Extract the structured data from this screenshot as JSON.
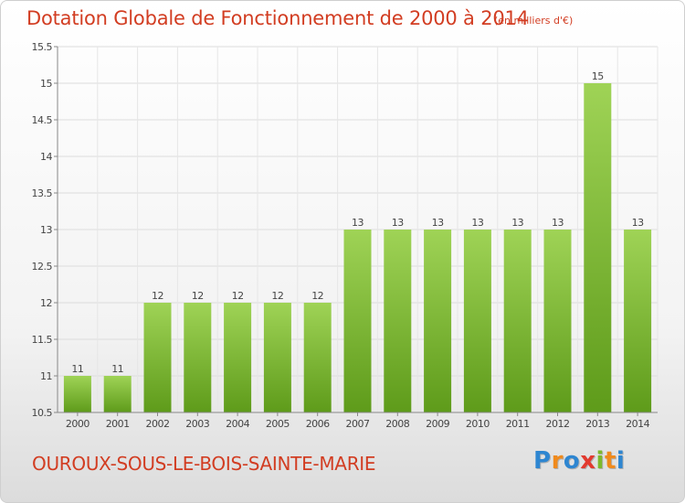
{
  "header": {
    "title": "Dotation Globale de Fonctionnement de 2000 à 2014",
    "subtitle": "(en milliers d'€)"
  },
  "footer": {
    "commune": "OUROUX-SOUS-LE-BOIS-SAINTE-MARIE",
    "logo_text": "Proxiti"
  },
  "colors": {
    "title": "#d23d22",
    "bar_top": "#9fd356",
    "bar_bottom": "#5e9b1a"
  },
  "chart_data": {
    "type": "bar",
    "title": "Dotation Globale de Fonctionnement de 2000 à 2014",
    "subtitle": "(en milliers d'€)",
    "xlabel": "",
    "ylabel": "",
    "categories": [
      "2000",
      "2001",
      "2002",
      "2003",
      "2004",
      "2005",
      "2006",
      "2007",
      "2008",
      "2009",
      "2010",
      "2011",
      "2012",
      "2013",
      "2014"
    ],
    "values": [
      11,
      11,
      12,
      12,
      12,
      12,
      12,
      13,
      13,
      13,
      13,
      13,
      13,
      15,
      13
    ],
    "data_labels": [
      "11",
      "11",
      "12",
      "12",
      "12",
      "12",
      "12",
      "13",
      "13",
      "13",
      "13",
      "13",
      "13",
      "15",
      "13"
    ],
    "ylim": [
      10.5,
      15.5
    ],
    "y_ticks": [
      10.5,
      11,
      11.5,
      12,
      12.5,
      13,
      13.5,
      14,
      14.5,
      15,
      15.5
    ],
    "y_tick_labels": [
      "10.5",
      "11",
      "11.5",
      "12",
      "12.5",
      "13",
      "13.5",
      "14",
      "14.5",
      "15",
      "15.5"
    ],
    "grid": true,
    "legend": "none"
  }
}
